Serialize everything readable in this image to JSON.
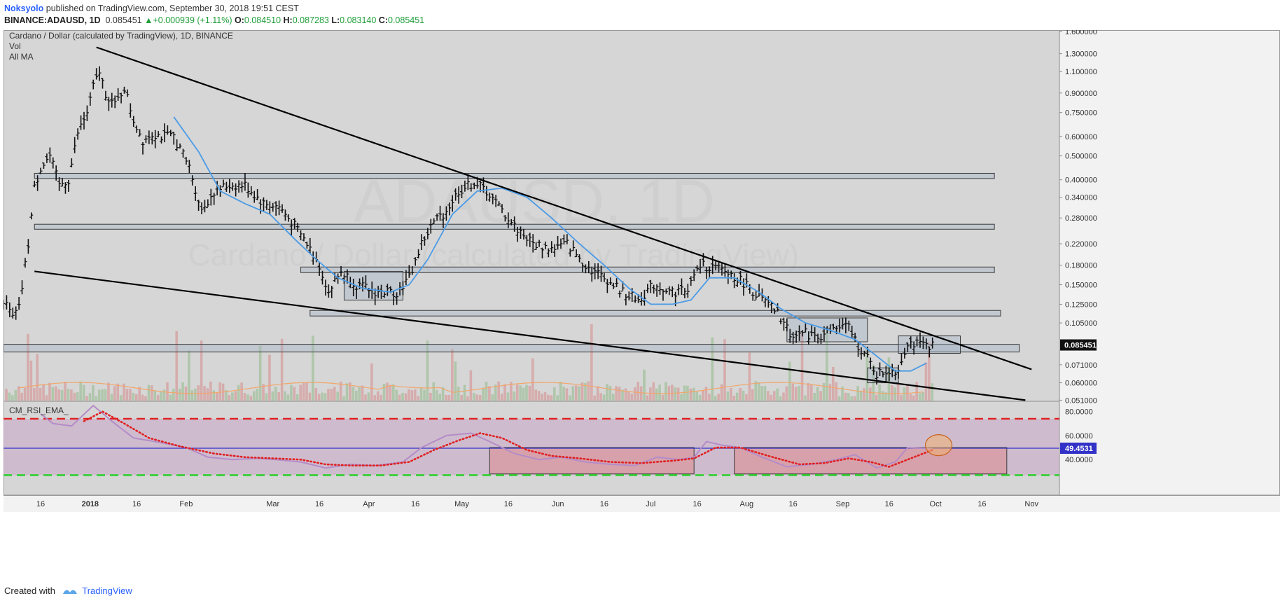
{
  "header": {
    "author": "Noksyolo",
    "published": "published on TradingView.com, September 30, 2018 19:51 CEST",
    "symbol": "BINANCE:ADAUSD, 1D",
    "last": "0.085451",
    "change": "+0.000939 (+1.11%)",
    "o_label": "O:",
    "o": "0.084510",
    "h_label": "H:",
    "h": "0.087283",
    "l_label": "L:",
    "l": "0.083140",
    "c_label": "C:",
    "c": "0.085451"
  },
  "footer": {
    "created_with": "Created with",
    "brand": "TradingView"
  },
  "chart_data": {
    "type": "line",
    "title": "Cardano / Dollar (calculated by TradingView), 1D, BINANCE",
    "legend": [
      "Vol",
      "All MA"
    ],
    "watermark_big": "ADAUSD, 1D",
    "watermark_small": "Cardano / Dollar (calculated by TradingView)",
    "yscale": "log",
    "y_ticks": [
      "1.600000",
      "1.300000",
      "1.100000",
      "0.900000",
      "0.750000",
      "0.600000",
      "0.500000",
      "0.400000",
      "0.340000",
      "0.280000",
      "0.220000",
      "0.180000",
      "0.150000",
      "0.125000",
      "0.105000",
      "0.085451",
      "0.071000",
      "0.060000",
      "0.051000"
    ],
    "y_tick_values": [
      1.6,
      1.3,
      1.1,
      0.9,
      0.75,
      0.6,
      0.5,
      0.4,
      0.34,
      0.28,
      0.22,
      0.18,
      0.15,
      0.125,
      0.105,
      0.085451,
      0.071,
      0.06,
      0.051
    ],
    "current_price": 0.085451,
    "x_ticks": [
      "16",
      "2018",
      "16",
      "Feb",
      "Mar",
      "16",
      "Apr",
      "16",
      "May",
      "16",
      "Jun",
      "16",
      "Jul",
      "16",
      "Aug",
      "16",
      "Sep",
      "16",
      "Oct",
      "16",
      "Nov"
    ],
    "x_tick_dates": [
      "2017-12-16",
      "2018-01-01",
      "2018-01-16",
      "2018-02-01",
      "2018-03-01",
      "2018-03-16",
      "2018-04-01",
      "2018-04-16",
      "2018-05-01",
      "2018-05-16",
      "2018-06-01",
      "2018-06-16",
      "2018-07-01",
      "2018-07-16",
      "2018-08-01",
      "2018-08-16",
      "2018-09-01",
      "2018-09-16",
      "2018-10-01",
      "2018-10-16",
      "2018-11-01"
    ],
    "x_start": "2017-12-04",
    "price_points": [
      [
        "2017-12-04",
        0.13
      ],
      [
        "2017-12-07",
        0.11
      ],
      [
        "2017-12-09",
        0.12
      ],
      [
        "2017-12-12",
        0.22
      ],
      [
        "2017-12-14",
        0.37
      ],
      [
        "2017-12-16",
        0.45
      ],
      [
        "2017-12-19",
        0.5
      ],
      [
        "2017-12-22",
        0.38
      ],
      [
        "2017-12-25",
        0.4
      ],
      [
        "2017-12-28",
        0.62
      ],
      [
        "2017-12-31",
        0.75
      ],
      [
        "2018-01-02",
        0.95
      ],
      [
        "2018-01-04",
        1.1
      ],
      [
        "2018-01-06",
        0.9
      ],
      [
        "2018-01-09",
        0.8
      ],
      [
        "2018-01-12",
        0.95
      ],
      [
        "2018-01-15",
        0.7
      ],
      [
        "2018-01-18",
        0.58
      ],
      [
        "2018-01-21",
        0.62
      ],
      [
        "2018-01-24",
        0.6
      ],
      [
        "2018-01-28",
        0.6
      ],
      [
        "2018-02-02",
        0.45
      ],
      [
        "2018-02-06",
        0.3
      ],
      [
        "2018-02-10",
        0.36
      ],
      [
        "2018-02-15",
        0.38
      ],
      [
        "2018-02-20",
        0.38
      ],
      [
        "2018-02-26",
        0.32
      ],
      [
        "2018-03-03",
        0.31
      ],
      [
        "2018-03-08",
        0.26
      ],
      [
        "2018-03-12",
        0.22
      ],
      [
        "2018-03-16",
        0.18
      ],
      [
        "2018-03-19",
        0.14
      ],
      [
        "2018-03-23",
        0.17
      ],
      [
        "2018-03-28",
        0.15
      ],
      [
        "2018-04-03",
        0.14
      ],
      [
        "2018-04-10",
        0.14
      ],
      [
        "2018-04-14",
        0.16
      ],
      [
        "2018-04-18",
        0.22
      ],
      [
        "2018-04-22",
        0.27
      ],
      [
        "2018-04-26",
        0.3
      ],
      [
        "2018-04-30",
        0.36
      ],
      [
        "2018-05-05",
        0.39
      ],
      [
        "2018-05-09",
        0.36
      ],
      [
        "2018-05-13",
        0.31
      ],
      [
        "2018-05-18",
        0.26
      ],
      [
        "2018-05-24",
        0.22
      ],
      [
        "2018-05-30",
        0.21
      ],
      [
        "2018-06-04",
        0.22
      ],
      [
        "2018-06-10",
        0.18
      ],
      [
        "2018-06-16",
        0.16
      ],
      [
        "2018-06-22",
        0.14
      ],
      [
        "2018-06-27",
        0.13
      ],
      [
        "2018-07-02",
        0.15
      ],
      [
        "2018-07-08",
        0.14
      ],
      [
        "2018-07-13",
        0.145
      ],
      [
        "2018-07-17",
        0.18
      ],
      [
        "2018-07-22",
        0.175
      ],
      [
        "2018-07-27",
        0.165
      ],
      [
        "2018-08-01",
        0.15
      ],
      [
        "2018-08-06",
        0.13
      ],
      [
        "2018-08-11",
        0.115
      ],
      [
        "2018-08-15",
        0.095
      ],
      [
        "2018-08-20",
        0.095
      ],
      [
        "2018-08-25",
        0.093
      ],
      [
        "2018-08-30",
        0.1
      ],
      [
        "2018-09-03",
        0.101
      ],
      [
        "2018-09-06",
        0.085
      ],
      [
        "2018-09-09",
        0.075
      ],
      [
        "2018-09-12",
        0.065
      ],
      [
        "2018-09-16",
        0.067
      ],
      [
        "2018-09-19",
        0.068
      ],
      [
        "2018-09-22",
        0.088
      ],
      [
        "2018-09-26",
        0.085
      ],
      [
        "2018-09-30",
        0.085451
      ]
    ],
    "ma_points": [
      [
        "2018-01-28",
        0.72
      ],
      [
        "2018-02-05",
        0.52
      ],
      [
        "2018-02-12",
        0.36
      ],
      [
        "2018-02-20",
        0.32
      ],
      [
        "2018-02-28",
        0.29
      ],
      [
        "2018-03-08",
        0.23
      ],
      [
        "2018-03-15",
        0.19
      ],
      [
        "2018-03-22",
        0.16
      ],
      [
        "2018-03-30",
        0.145
      ],
      [
        "2018-04-08",
        0.14
      ],
      [
        "2018-04-14",
        0.15
      ],
      [
        "2018-04-20",
        0.19
      ],
      [
        "2018-04-28",
        0.29
      ],
      [
        "2018-05-06",
        0.36
      ],
      [
        "2018-05-14",
        0.37
      ],
      [
        "2018-05-22",
        0.34
      ],
      [
        "2018-05-30",
        0.28
      ],
      [
        "2018-06-08",
        0.22
      ],
      [
        "2018-06-16",
        0.18
      ],
      [
        "2018-06-24",
        0.145
      ],
      [
        "2018-07-01",
        0.125
      ],
      [
        "2018-07-08",
        0.125
      ],
      [
        "2018-07-14",
        0.13
      ],
      [
        "2018-07-20",
        0.16
      ],
      [
        "2018-07-28",
        0.16
      ],
      [
        "2018-08-05",
        0.14
      ],
      [
        "2018-08-12",
        0.12
      ],
      [
        "2018-08-20",
        0.105
      ],
      [
        "2018-08-28",
        0.098
      ],
      [
        "2018-09-05",
        0.09
      ],
      [
        "2018-09-12",
        0.077
      ],
      [
        "2018-09-18",
        0.067
      ],
      [
        "2018-09-23",
        0.067
      ],
      [
        "2018-09-28",
        0.072
      ]
    ],
    "trendlines": [
      {
        "from": [
          "2018-01-03",
          1.38
        ],
        "to": [
          "2018-11-01",
          0.068
        ]
      },
      {
        "from": [
          "2017-12-14",
          0.17
        ],
        "to": [
          "2018-10-30",
          0.051
        ]
      }
    ],
    "zones": [
      {
        "start": "2017-12-14",
        "end": "2018-10-20",
        "low": 0.405,
        "high": 0.425
      },
      {
        "start": "2017-12-14",
        "end": "2018-10-20",
        "low": 0.252,
        "high": 0.264
      },
      {
        "start": "2018-03-10",
        "end": "2018-10-20",
        "low": 0.168,
        "high": 0.177
      },
      {
        "start": "2018-03-13",
        "end": "2018-10-22",
        "low": 0.112,
        "high": 0.118
      },
      {
        "start": "2017-12-04",
        "end": "2018-10-28",
        "low": 0.08,
        "high": 0.086
      },
      {
        "start": "2018-03-24",
        "end": "2018-04-12",
        "low": 0.13,
        "high": 0.17
      },
      {
        "start": "2018-08-14",
        "end": "2018-09-09",
        "low": 0.088,
        "high": 0.11
      },
      {
        "start": "2018-09-09",
        "end": "2018-09-19",
        "low": 0.06,
        "high": 0.069
      },
      {
        "start": "2018-09-19",
        "end": "2018-10-09",
        "low": 0.079,
        "high": 0.093
      }
    ],
    "rsi": {
      "label": "CM_RSI_EMA_",
      "y_ticks": [
        "80.0000",
        "60.0000",
        "40.0000"
      ],
      "y_tick_values": [
        80,
        60,
        40
      ],
      "current": "49.4531",
      "current_value": 49.4531,
      "ylim": [
        22,
        88
      ],
      "upper_band": 74,
      "lower_band": 27,
      "rsi_points": [
        [
          "2017-12-16",
          78
        ],
        [
          "2017-12-20",
          70
        ],
        [
          "2017-12-26",
          68
        ],
        [
          "2018-01-02",
          85
        ],
        [
          "2018-01-08",
          72
        ],
        [
          "2018-01-15",
          58
        ],
        [
          "2018-01-22",
          55
        ],
        [
          "2018-02-01",
          50
        ],
        [
          "2018-02-08",
          42
        ],
        [
          "2018-02-16",
          40
        ],
        [
          "2018-02-24",
          41
        ],
        [
          "2018-03-02",
          40
        ],
        [
          "2018-03-10",
          38
        ],
        [
          "2018-03-18",
          33
        ],
        [
          "2018-03-26",
          36
        ],
        [
          "2018-04-03",
          35
        ],
        [
          "2018-04-12",
          38
        ],
        [
          "2018-04-18",
          50
        ],
        [
          "2018-04-26",
          60
        ],
        [
          "2018-05-04",
          62
        ],
        [
          "2018-05-10",
          55
        ],
        [
          "2018-05-18",
          45
        ],
        [
          "2018-05-26",
          40
        ],
        [
          "2018-06-02",
          42
        ],
        [
          "2018-06-10",
          38
        ],
        [
          "2018-06-18",
          36
        ],
        [
          "2018-06-26",
          35
        ],
        [
          "2018-07-03",
          42
        ],
        [
          "2018-07-10",
          40
        ],
        [
          "2018-07-15",
          42
        ],
        [
          "2018-07-19",
          55
        ],
        [
          "2018-07-24",
          52
        ],
        [
          "2018-07-30",
          50
        ],
        [
          "2018-08-06",
          42
        ],
        [
          "2018-08-14",
          34
        ],
        [
          "2018-08-22",
          36
        ],
        [
          "2018-08-30",
          40
        ],
        [
          "2018-09-05",
          44
        ],
        [
          "2018-09-12",
          33
        ],
        [
          "2018-09-18",
          38
        ],
        [
          "2018-09-22",
          50
        ],
        [
          "2018-09-30",
          49
        ]
      ],
      "ema_points": [
        [
          "2017-12-30",
          72
        ],
        [
          "2018-01-05",
          80
        ],
        [
          "2018-01-12",
          70
        ],
        [
          "2018-01-20",
          58
        ],
        [
          "2018-01-30",
          51
        ],
        [
          "2018-02-10",
          45
        ],
        [
          "2018-02-20",
          42
        ],
        [
          "2018-03-01",
          41
        ],
        [
          "2018-03-10",
          40
        ],
        [
          "2018-03-18",
          36
        ],
        [
          "2018-03-26",
          35
        ],
        [
          "2018-04-05",
          35
        ],
        [
          "2018-04-14",
          38
        ],
        [
          "2018-04-22",
          48
        ],
        [
          "2018-04-30",
          56
        ],
        [
          "2018-05-07",
          62
        ],
        [
          "2018-05-14",
          58
        ],
        [
          "2018-05-22",
          48
        ],
        [
          "2018-05-30",
          43
        ],
        [
          "2018-06-08",
          41
        ],
        [
          "2018-06-18",
          38
        ],
        [
          "2018-06-28",
          37
        ],
        [
          "2018-07-08",
          39
        ],
        [
          "2018-07-15",
          41
        ],
        [
          "2018-07-22",
          50
        ],
        [
          "2018-07-30",
          50
        ],
        [
          "2018-08-08",
          43
        ],
        [
          "2018-08-18",
          36
        ],
        [
          "2018-08-26",
          37
        ],
        [
          "2018-09-03",
          41
        ],
        [
          "2018-09-10",
          38
        ],
        [
          "2018-09-16",
          34
        ],
        [
          "2018-09-22",
          40
        ],
        [
          "2018-09-30",
          48
        ]
      ],
      "zones": [
        {
          "start": "2018-05-10",
          "end": "2018-07-15",
          "low": 28,
          "high": 50
        },
        {
          "start": "2018-07-28",
          "end": "2018-10-24",
          "low": 28,
          "high": 50
        }
      ],
      "circle": {
        "date": "2018-10-02",
        "value": 52
      }
    }
  }
}
